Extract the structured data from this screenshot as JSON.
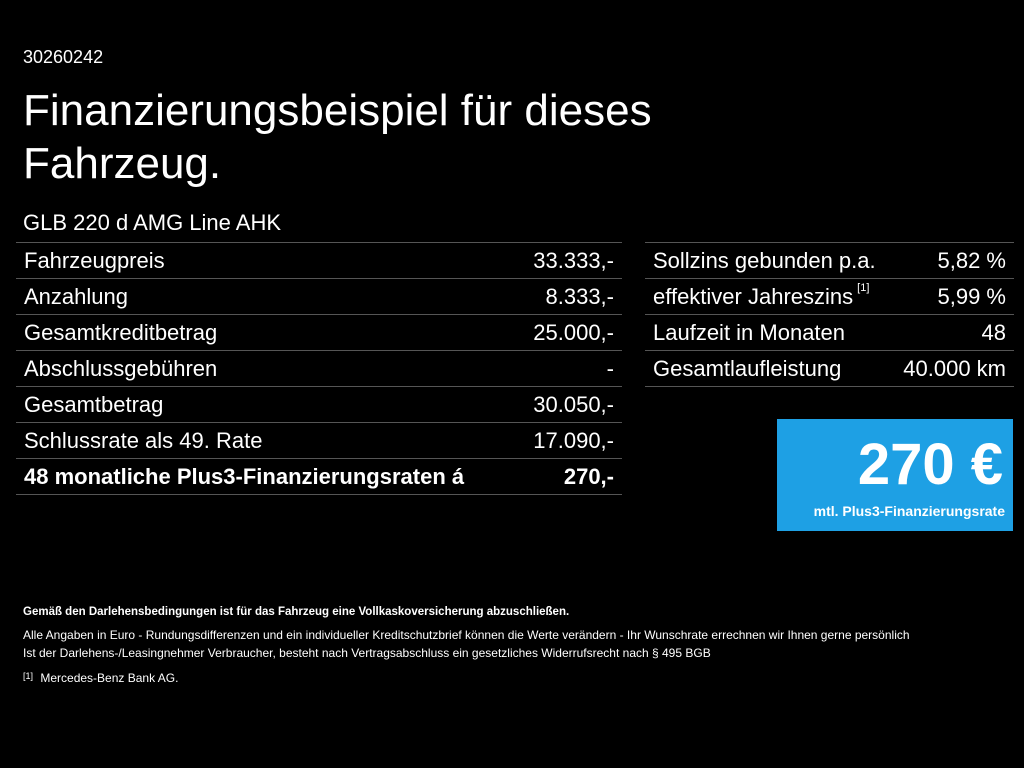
{
  "code": "30260242",
  "title": "Finanzierungsbeispiel für dieses Fahrzeug.",
  "model": "GLB 220 d AMG Line AHK",
  "left_rows": [
    {
      "label": "Fahrzeugpreis",
      "value": "33.333,-"
    },
    {
      "label": "Anzahlung",
      "value": "8.333,-"
    },
    {
      "label": "Gesamtkreditbetrag",
      "value": "25.000,-"
    },
    {
      "label": "Abschlussgebühren",
      "value": "-"
    },
    {
      "label": "Gesamtbetrag",
      "value": "30.050,-"
    },
    {
      "label": "Schlussrate als 49. Rate",
      "value": "17.090,-"
    },
    {
      "label": "48 monatliche Plus3-Finanzierungsraten á",
      "value": "270,-"
    }
  ],
  "right_rows": [
    {
      "label": "Sollzins gebunden p.a.",
      "sup": "",
      "value": "5,82 %"
    },
    {
      "label": "effektiver Jahreszins",
      "sup": "[1]",
      "value": "5,99 %"
    },
    {
      "label": "Laufzeit in Monaten",
      "sup": "",
      "value": "48"
    },
    {
      "label": "Gesamtlaufleistung",
      "sup": "",
      "value": "40.000 km"
    }
  ],
  "rate": {
    "amount": "270 €",
    "label": "mtl. Plus3-Finanzierungsrate",
    "color": "#1ea0e4"
  },
  "footnotes": {
    "bold": "Gemäß den Darlehensbedingungen ist für das Fahrzeug eine Vollkaskoversicherung abzuschließen.",
    "line1": "Alle Angaben in Euro - Rundungsdifferenzen und ein individueller Kreditschutzbrief können die Werte verändern - Ihr Wunschrate errechnen wir Ihnen gerne persönlich",
    "line2": "Ist der Darlehens-/Leasingnehmer Verbraucher, besteht nach Vertragsabschluss ein gesetzliches Widerrufsrecht nach § 495 BGB",
    "ref_mark": "[1]",
    "ref_text": "Mercedes-Benz Bank AG."
  }
}
